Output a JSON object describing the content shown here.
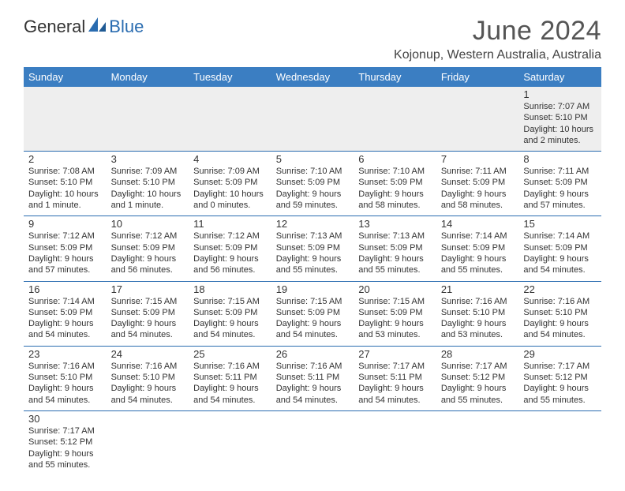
{
  "logo": {
    "text1": "General",
    "text2": "Blue"
  },
  "title": "June 2024",
  "location": "Kojonup, Western Australia, Australia",
  "colors": {
    "headerBg": "#3b7ec2",
    "rowBorder": "#2a6cb0",
    "firstRowBg": "#eeeeee"
  },
  "dayHeaders": [
    "Sunday",
    "Monday",
    "Tuesday",
    "Wednesday",
    "Thursday",
    "Friday",
    "Saturday"
  ],
  "weeks": [
    [
      null,
      null,
      null,
      null,
      null,
      null,
      {
        "n": "1",
        "sr": "Sunrise: 7:07 AM",
        "ss": "Sunset: 5:10 PM",
        "dl": "Daylight: 10 hours and 2 minutes."
      }
    ],
    [
      {
        "n": "2",
        "sr": "Sunrise: 7:08 AM",
        "ss": "Sunset: 5:10 PM",
        "dl": "Daylight: 10 hours and 1 minute."
      },
      {
        "n": "3",
        "sr": "Sunrise: 7:09 AM",
        "ss": "Sunset: 5:10 PM",
        "dl": "Daylight: 10 hours and 1 minute."
      },
      {
        "n": "4",
        "sr": "Sunrise: 7:09 AM",
        "ss": "Sunset: 5:09 PM",
        "dl": "Daylight: 10 hours and 0 minutes."
      },
      {
        "n": "5",
        "sr": "Sunrise: 7:10 AM",
        "ss": "Sunset: 5:09 PM",
        "dl": "Daylight: 9 hours and 59 minutes."
      },
      {
        "n": "6",
        "sr": "Sunrise: 7:10 AM",
        "ss": "Sunset: 5:09 PM",
        "dl": "Daylight: 9 hours and 58 minutes."
      },
      {
        "n": "7",
        "sr": "Sunrise: 7:11 AM",
        "ss": "Sunset: 5:09 PM",
        "dl": "Daylight: 9 hours and 58 minutes."
      },
      {
        "n": "8",
        "sr": "Sunrise: 7:11 AM",
        "ss": "Sunset: 5:09 PM",
        "dl": "Daylight: 9 hours and 57 minutes."
      }
    ],
    [
      {
        "n": "9",
        "sr": "Sunrise: 7:12 AM",
        "ss": "Sunset: 5:09 PM",
        "dl": "Daylight: 9 hours and 57 minutes."
      },
      {
        "n": "10",
        "sr": "Sunrise: 7:12 AM",
        "ss": "Sunset: 5:09 PM",
        "dl": "Daylight: 9 hours and 56 minutes."
      },
      {
        "n": "11",
        "sr": "Sunrise: 7:12 AM",
        "ss": "Sunset: 5:09 PM",
        "dl": "Daylight: 9 hours and 56 minutes."
      },
      {
        "n": "12",
        "sr": "Sunrise: 7:13 AM",
        "ss": "Sunset: 5:09 PM",
        "dl": "Daylight: 9 hours and 55 minutes."
      },
      {
        "n": "13",
        "sr": "Sunrise: 7:13 AM",
        "ss": "Sunset: 5:09 PM",
        "dl": "Daylight: 9 hours and 55 minutes."
      },
      {
        "n": "14",
        "sr": "Sunrise: 7:14 AM",
        "ss": "Sunset: 5:09 PM",
        "dl": "Daylight: 9 hours and 55 minutes."
      },
      {
        "n": "15",
        "sr": "Sunrise: 7:14 AM",
        "ss": "Sunset: 5:09 PM",
        "dl": "Daylight: 9 hours and 54 minutes."
      }
    ],
    [
      {
        "n": "16",
        "sr": "Sunrise: 7:14 AM",
        "ss": "Sunset: 5:09 PM",
        "dl": "Daylight: 9 hours and 54 minutes."
      },
      {
        "n": "17",
        "sr": "Sunrise: 7:15 AM",
        "ss": "Sunset: 5:09 PM",
        "dl": "Daylight: 9 hours and 54 minutes."
      },
      {
        "n": "18",
        "sr": "Sunrise: 7:15 AM",
        "ss": "Sunset: 5:09 PM",
        "dl": "Daylight: 9 hours and 54 minutes."
      },
      {
        "n": "19",
        "sr": "Sunrise: 7:15 AM",
        "ss": "Sunset: 5:09 PM",
        "dl": "Daylight: 9 hours and 54 minutes."
      },
      {
        "n": "20",
        "sr": "Sunrise: 7:15 AM",
        "ss": "Sunset: 5:09 PM",
        "dl": "Daylight: 9 hours and 53 minutes."
      },
      {
        "n": "21",
        "sr": "Sunrise: 7:16 AM",
        "ss": "Sunset: 5:10 PM",
        "dl": "Daylight: 9 hours and 53 minutes."
      },
      {
        "n": "22",
        "sr": "Sunrise: 7:16 AM",
        "ss": "Sunset: 5:10 PM",
        "dl": "Daylight: 9 hours and 54 minutes."
      }
    ],
    [
      {
        "n": "23",
        "sr": "Sunrise: 7:16 AM",
        "ss": "Sunset: 5:10 PM",
        "dl": "Daylight: 9 hours and 54 minutes."
      },
      {
        "n": "24",
        "sr": "Sunrise: 7:16 AM",
        "ss": "Sunset: 5:10 PM",
        "dl": "Daylight: 9 hours and 54 minutes."
      },
      {
        "n": "25",
        "sr": "Sunrise: 7:16 AM",
        "ss": "Sunset: 5:11 PM",
        "dl": "Daylight: 9 hours and 54 minutes."
      },
      {
        "n": "26",
        "sr": "Sunrise: 7:16 AM",
        "ss": "Sunset: 5:11 PM",
        "dl": "Daylight: 9 hours and 54 minutes."
      },
      {
        "n": "27",
        "sr": "Sunrise: 7:17 AM",
        "ss": "Sunset: 5:11 PM",
        "dl": "Daylight: 9 hours and 54 minutes."
      },
      {
        "n": "28",
        "sr": "Sunrise: 7:17 AM",
        "ss": "Sunset: 5:12 PM",
        "dl": "Daylight: 9 hours and 55 minutes."
      },
      {
        "n": "29",
        "sr": "Sunrise: 7:17 AM",
        "ss": "Sunset: 5:12 PM",
        "dl": "Daylight: 9 hours and 55 minutes."
      }
    ],
    [
      {
        "n": "30",
        "sr": "Sunrise: 7:17 AM",
        "ss": "Sunset: 5:12 PM",
        "dl": "Daylight: 9 hours and 55 minutes."
      },
      null,
      null,
      null,
      null,
      null,
      null
    ]
  ]
}
